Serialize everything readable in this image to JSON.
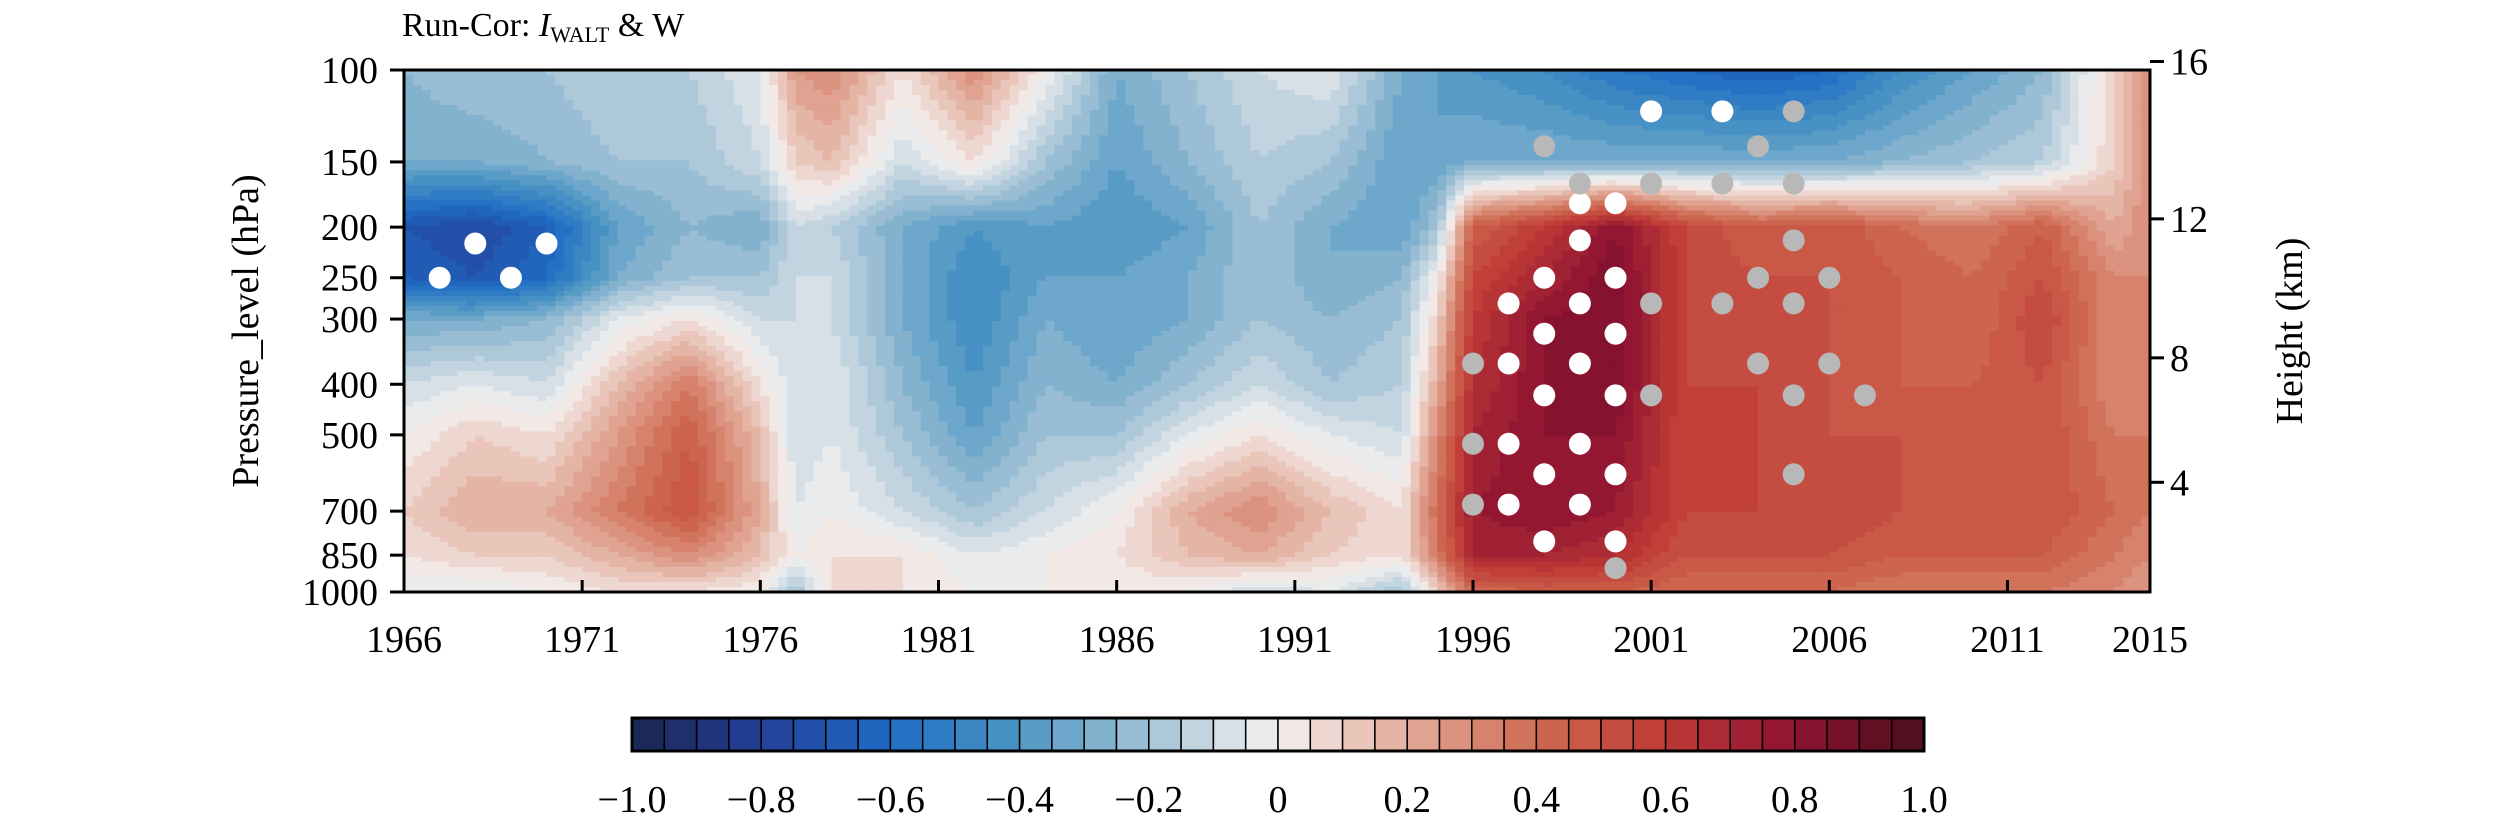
{
  "chart_data": {
    "type": "heatmap",
    "title": "Run-Cor: ",
    "title_var_italic": "I",
    "title_var_subscript": "WALT",
    "title_suffix": " & W",
    "xlabel": "",
    "ylabel": "Pressure_level (hPa)",
    "y2label": "Height (km)",
    "x_ticks": [
      1966,
      1971,
      1976,
      1981,
      1986,
      1991,
      1996,
      2001,
      2006,
      2011,
      2015
    ],
    "xlim": [
      1966,
      2015
    ],
    "y_ticks": [
      100,
      150,
      200,
      250,
      300,
      400,
      500,
      700,
      850,
      1000
    ],
    "ylim": [
      1000,
      100
    ],
    "y_scale": "log",
    "y2_ticks": [
      4,
      8,
      12,
      16
    ],
    "colorbar": {
      "range": [
        -1.0,
        1.0
      ],
      "n_levels": 40,
      "tick_values": [
        -1.0,
        -0.8,
        -0.6,
        -0.4,
        -0.2,
        0,
        0.2,
        0.4,
        0.6,
        0.8,
        1.0
      ],
      "tick_labels": [
        "−1.0",
        "−0.8",
        "−0.6",
        "−0.4",
        "−0.2",
        "0",
        "0.2",
        "0.4",
        "0.6",
        "0.8",
        "1.0"
      ],
      "colors": [
        "#1b2550",
        "#ffffff",
        "#4a0f1c"
      ]
    },
    "colormap_stops": [
      {
        "v": -1.0,
        "c": "#1b2550"
      },
      {
        "v": -0.8,
        "c": "#233f99"
      },
      {
        "v": -0.6,
        "c": "#1f6cc4"
      },
      {
        "v": -0.4,
        "c": "#4d96c4"
      },
      {
        "v": -0.2,
        "c": "#a3c3d6"
      },
      {
        "v": 0.0,
        "c": "#f4f1f0"
      },
      {
        "v": 0.2,
        "c": "#e2ab9a"
      },
      {
        "v": 0.4,
        "c": "#cf6a52"
      },
      {
        "v": 0.6,
        "c": "#be3a36"
      },
      {
        "v": 0.8,
        "c": "#8e1231"
      },
      {
        "v": 1.0,
        "c": "#4a0f1c"
      }
    ],
    "field": {
      "years": [
        1966,
        1968,
        1970,
        1972,
        1974,
        1976,
        1977,
        1978,
        1980,
        1982,
        1984,
        1986,
        1988,
        1990,
        1992,
        1994,
        1995,
        1996,
        1998,
        2000,
        2002,
        2004,
        2006,
        2008,
        2010,
        2012,
        2014,
        2015
      ],
      "levels": [
        100,
        150,
        200,
        250,
        300,
        400,
        500,
        700,
        850,
        1000
      ],
      "values": [
        [
          -0.25,
          -0.2,
          -0.2,
          -0.15,
          -0.15,
          -0.05,
          0.25,
          0.3,
          0.05,
          0.3,
          0.0,
          -0.3,
          -0.2,
          -0.1,
          -0.05,
          -0.3,
          -0.35,
          -0.4,
          -0.45,
          -0.55,
          -0.6,
          -0.65,
          -0.6,
          -0.45,
          -0.35,
          -0.25,
          0.1,
          0.3
        ],
        [
          -0.3,
          -0.3,
          -0.25,
          -0.2,
          -0.2,
          -0.1,
          0.1,
          0.15,
          -0.1,
          0.05,
          -0.2,
          -0.35,
          -0.25,
          -0.15,
          -0.2,
          -0.35,
          -0.35,
          -0.3,
          -0.3,
          -0.3,
          -0.3,
          -0.3,
          -0.3,
          -0.25,
          -0.2,
          -0.15,
          0.1,
          0.3
        ],
        [
          -0.7,
          -0.75,
          -0.65,
          -0.35,
          -0.25,
          -0.3,
          -0.1,
          -0.15,
          -0.3,
          -0.4,
          -0.35,
          -0.4,
          -0.35,
          -0.2,
          -0.3,
          -0.35,
          -0.2,
          0.45,
          0.6,
          0.8,
          0.55,
          0.45,
          0.5,
          0.4,
          0.35,
          0.45,
          0.2,
          0.3
        ],
        [
          -0.65,
          -0.7,
          -0.6,
          -0.3,
          -0.2,
          -0.2,
          -0.1,
          -0.1,
          -0.3,
          -0.45,
          -0.35,
          -0.35,
          -0.3,
          -0.2,
          -0.3,
          -0.25,
          0.0,
          0.55,
          0.7,
          0.85,
          0.55,
          0.5,
          0.5,
          0.45,
          0.4,
          0.5,
          0.3,
          0.3
        ],
        [
          -0.3,
          -0.3,
          -0.25,
          -0.05,
          0.05,
          -0.1,
          -0.1,
          -0.1,
          -0.3,
          -0.45,
          -0.3,
          -0.35,
          -0.3,
          -0.2,
          -0.25,
          -0.2,
          0.1,
          0.6,
          0.8,
          0.85,
          0.55,
          0.5,
          0.5,
          0.45,
          0.4,
          0.55,
          0.3,
          0.3
        ],
        [
          -0.1,
          -0.05,
          -0.1,
          0.15,
          0.35,
          0.05,
          -0.1,
          -0.05,
          -0.25,
          -0.4,
          -0.25,
          -0.3,
          -0.2,
          -0.1,
          -0.2,
          -0.15,
          0.2,
          0.65,
          0.8,
          0.85,
          0.55,
          0.55,
          0.5,
          0.45,
          0.45,
          0.5,
          0.3,
          0.3
        ],
        [
          0.0,
          0.1,
          0.05,
          0.25,
          0.45,
          0.15,
          -0.1,
          -0.05,
          -0.2,
          -0.35,
          -0.2,
          -0.2,
          -0.05,
          0.05,
          -0.05,
          -0.1,
          0.3,
          0.7,
          0.8,
          0.8,
          0.55,
          0.55,
          0.5,
          0.5,
          0.45,
          0.5,
          0.35,
          0.35
        ],
        [
          0.1,
          0.2,
          0.2,
          0.35,
          0.5,
          0.2,
          -0.05,
          0.0,
          -0.1,
          -0.2,
          -0.1,
          0.0,
          0.2,
          0.3,
          0.15,
          0.05,
          0.4,
          0.75,
          0.8,
          0.75,
          0.55,
          0.55,
          0.55,
          0.5,
          0.45,
          0.5,
          0.4,
          0.35
        ],
        [
          0.05,
          0.1,
          0.1,
          0.2,
          0.3,
          0.15,
          0.0,
          0.05,
          0.05,
          -0.05,
          0.0,
          0.05,
          0.15,
          0.2,
          0.1,
          0.05,
          0.35,
          0.7,
          0.7,
          0.65,
          0.5,
          0.5,
          0.5,
          0.45,
          0.45,
          0.45,
          0.35,
          0.3
        ],
        [
          -0.05,
          -0.05,
          0.0,
          0.05,
          0.05,
          0.0,
          -0.2,
          0.05,
          0.05,
          0.0,
          0.0,
          0.0,
          0.0,
          -0.1,
          -0.05,
          -0.2,
          0.1,
          0.4,
          0.45,
          0.45,
          0.4,
          0.4,
          0.4,
          0.35,
          0.35,
          0.35,
          0.3,
          0.25
        ]
      ]
    },
    "significance_points": {
      "white": [
        [
          1967,
          250
        ],
        [
          1968,
          215
        ],
        [
          1969,
          250
        ],
        [
          1970,
          215
        ],
        [
          2001,
          120
        ],
        [
          2003,
          120
        ],
        [
          1999,
          180
        ],
        [
          2000,
          180
        ],
        [
          1999,
          212
        ],
        [
          1998,
          250
        ],
        [
          2000,
          250
        ],
        [
          1997,
          280
        ],
        [
          1999,
          280
        ],
        [
          1998,
          320
        ],
        [
          2000,
          320
        ],
        [
          1997,
          365
        ],
        [
          1999,
          365
        ],
        [
          1998,
          420
        ],
        [
          2000,
          420
        ],
        [
          1997,
          520
        ],
        [
          1999,
          520
        ],
        [
          1998,
          595
        ],
        [
          2000,
          595
        ],
        [
          1997,
          680
        ],
        [
          1999,
          680
        ],
        [
          1998,
          800
        ],
        [
          2000,
          800
        ]
      ],
      "gray": [
        [
          2005,
          120
        ],
        [
          1998,
          140
        ],
        [
          2004,
          140
        ],
        [
          1999,
          165
        ],
        [
          2001,
          165
        ],
        [
          2003,
          165
        ],
        [
          2005,
          165
        ],
        [
          2005,
          212
        ],
        [
          2004,
          250
        ],
        [
          2006,
          250
        ],
        [
          2001,
          280
        ],
        [
          2003,
          280
        ],
        [
          2005,
          280
        ],
        [
          1996,
          365
        ],
        [
          2004,
          365
        ],
        [
          2006,
          365
        ],
        [
          2001,
          420
        ],
        [
          2005,
          420
        ],
        [
          2007,
          420
        ],
        [
          1996,
          520
        ],
        [
          2005,
          595
        ],
        [
          1996,
          680
        ],
        [
          2000,
          900
        ]
      ]
    }
  }
}
